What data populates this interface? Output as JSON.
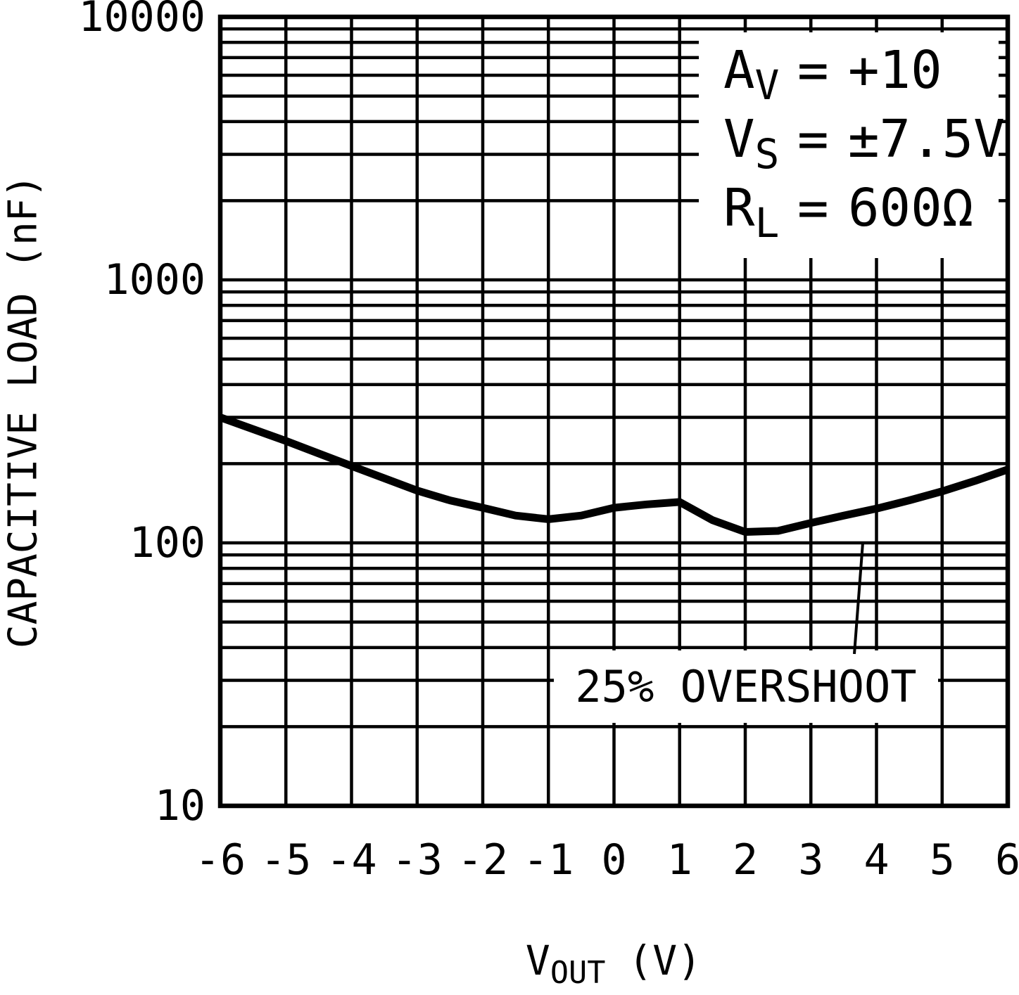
{
  "colors": {
    "ink": "#000000",
    "paper": "#ffffff"
  },
  "chart_data": {
    "type": "line",
    "title": "",
    "xlabel": {
      "main": "V",
      "sub": "OUT",
      "unit": "(V)"
    },
    "ylabel": "CAPACITIVE LOAD (nF)",
    "x_scale": "linear",
    "y_scale": "log",
    "xlim": [
      -6,
      6
    ],
    "ylim": [
      10,
      10000
    ],
    "x_ticks": [
      -6,
      -5,
      -4,
      -3,
      -2,
      -1,
      0,
      1,
      2,
      3,
      4,
      5,
      6
    ],
    "y_ticks": [
      10,
      100,
      1000,
      10000
    ],
    "grid": {
      "x_minor": false,
      "y_minor_log": true,
      "legend": "none"
    },
    "series": [
      {
        "name": "25% OVERSHOOT",
        "x": [
          -6,
          -5,
          -4,
          -3,
          -2.5,
          -2,
          -1.5,
          -1,
          -0.5,
          0,
          0.5,
          1,
          1.5,
          2,
          2.5,
          3,
          3.5,
          4,
          4.5,
          5,
          5.5,
          6
        ],
        "y": [
          300,
          244,
          196,
          158,
          145,
          136,
          127,
          123,
          127,
          136,
          140,
          143,
          122,
          110,
          111,
          119,
          127,
          135,
          145,
          157,
          172,
          190
        ]
      }
    ],
    "annotations": {
      "conditions": [
        {
          "sym": "A",
          "sub": "V",
          "eq": "=",
          "val": "+10"
        },
        {
          "sym": "V",
          "sub": "S",
          "eq": "=",
          "val": "±7.5V"
        },
        {
          "sym": "R",
          "sub": "L",
          "eq": "=",
          "val": "600Ω"
        }
      ],
      "curve_label": "25% OVERSHOOT"
    }
  }
}
